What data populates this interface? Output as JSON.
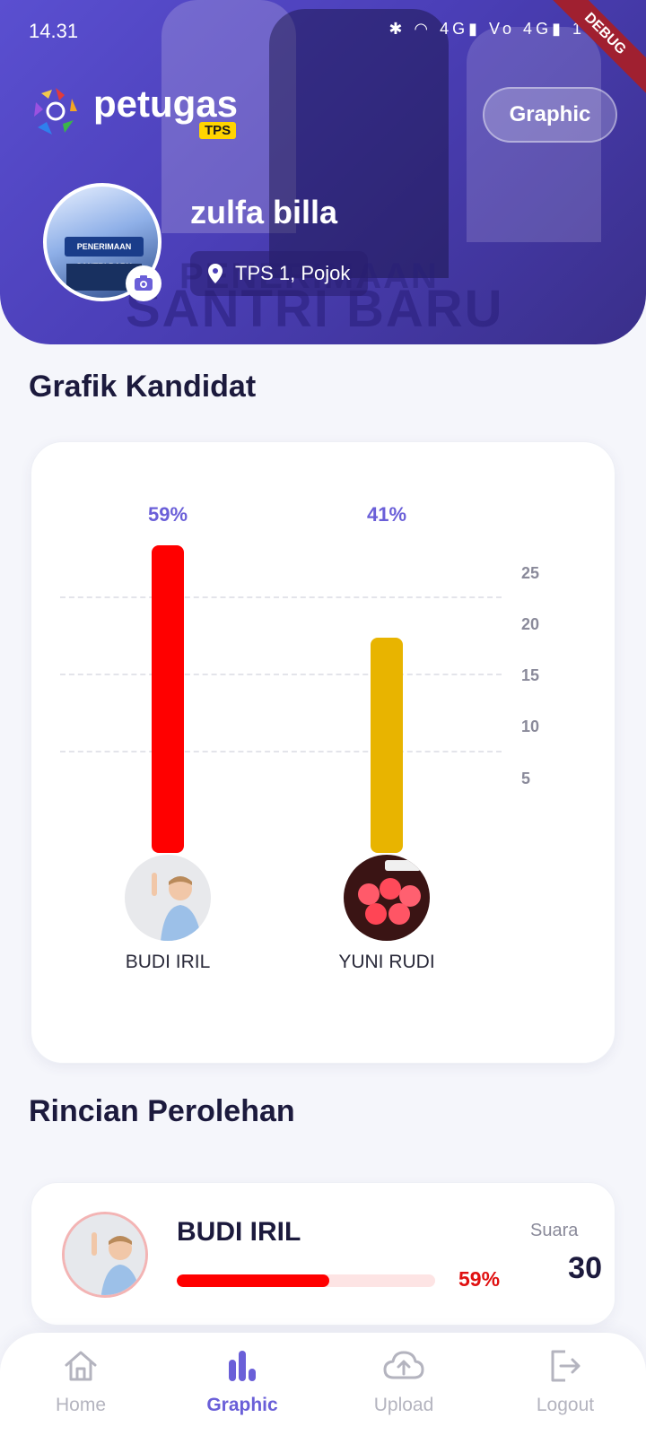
{
  "status_bar": {
    "time": "14.31",
    "icons_text": "✱ ◠ 4G▮ Vo 4G▮ 15",
    "debug_label": "DEBUG"
  },
  "header": {
    "logo_text": "petugas",
    "logo_badge": "TPS",
    "graphic_button": "Graphic",
    "user_name": "zulfa billa",
    "location": "TPS 1, Pojok",
    "background_text": "SANTRI BARU",
    "background_text_top": "PENERIMAAN",
    "avatar_poster_text": "PENERIMAAN SANTRI BARU"
  },
  "chart_section_title": "Grafik Kandidat",
  "chart_data": {
    "type": "bar",
    "categories": [
      "BUDI IRIL",
      "YUNI RUDI"
    ],
    "values": [
      30,
      21
    ],
    "percent_labels": [
      "59%",
      "41%"
    ],
    "colors": [
      "#ff0000",
      "#e8b400"
    ],
    "y_ticks": [
      5,
      10,
      15,
      20,
      25
    ],
    "ylim": [
      0,
      30
    ],
    "grid": true
  },
  "detail_section_title": "Rincian Perolehan",
  "detail": {
    "name": "BUDI IRIL",
    "percent_label": "59%",
    "percent_value": 59,
    "suara_label": "Suara",
    "suara_value": "30",
    "bar_color": "#ff0000"
  },
  "nav": {
    "items": [
      {
        "label": "Home",
        "icon": "home-icon"
      },
      {
        "label": "Graphic",
        "icon": "bar-chart-icon"
      },
      {
        "label": "Upload",
        "icon": "cloud-upload-icon"
      },
      {
        "label": "Logout",
        "icon": "logout-icon"
      }
    ],
    "active_index": 1,
    "active_color": "#6a5fd8"
  }
}
